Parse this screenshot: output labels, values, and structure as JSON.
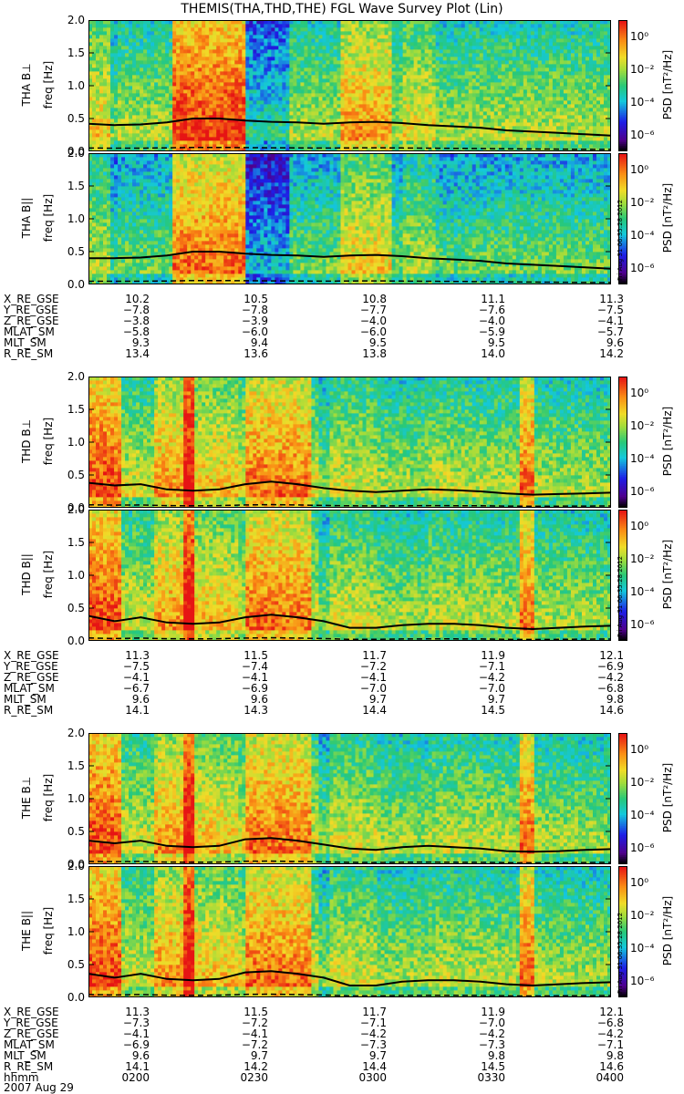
{
  "title": "THEMIS(THA,THD,THE) FGL Wave Survey Plot (Lin)",
  "colors": {
    "background": "#ffffff",
    "line": "#000000"
  },
  "chart_data": {
    "type": "heatmap",
    "yaxis": {
      "label": "freq [Hz]",
      "range": [
        0,
        2.0
      ],
      "ticks": [
        "0.0",
        "0.5",
        "1.0",
        "1.5",
        "2.0"
      ]
    },
    "colorbar": {
      "label": "PSD [nT²/Hz]",
      "ticks": [
        "10⁰",
        "10⁻²",
        "10⁻⁴",
        "10⁻⁶"
      ],
      "scale": "log",
      "range": [
        -7,
        1
      ]
    },
    "stamp": "Fri Aug 31 06:35:28 2012",
    "panels": [
      {
        "label": "THA B⊥",
        "probe": "a",
        "fc": [
          0.42,
          0.4,
          0.41,
          0.44,
          0.5,
          0.5,
          0.47,
          0.45,
          0.44,
          0.42,
          0.44,
          0.45,
          0.43,
          0.4,
          0.38,
          0.36,
          0.32,
          0.3,
          0.28,
          0.26,
          0.24
        ]
      },
      {
        "label": "THA B||",
        "probe": "a",
        "fc": [
          0.4,
          0.4,
          0.41,
          0.44,
          0.5,
          0.5,
          0.47,
          0.45,
          0.44,
          0.42,
          0.44,
          0.45,
          0.43,
          0.4,
          0.38,
          0.36,
          0.32,
          0.3,
          0.28,
          0.26,
          0.24
        ]
      },
      {
        "label": "THD B⊥",
        "probe": "d",
        "fc": [
          0.38,
          0.34,
          0.36,
          0.28,
          0.26,
          0.28,
          0.36,
          0.4,
          0.36,
          0.3,
          0.26,
          0.24,
          0.26,
          0.28,
          0.27,
          0.25,
          0.22,
          0.2,
          0.21,
          0.22,
          0.23
        ]
      },
      {
        "label": "THD B||",
        "probe": "d",
        "fc": [
          0.38,
          0.3,
          0.36,
          0.28,
          0.26,
          0.28,
          0.36,
          0.4,
          0.36,
          0.3,
          0.2,
          0.2,
          0.24,
          0.26,
          0.26,
          0.24,
          0.2,
          0.18,
          0.2,
          0.22,
          0.23
        ]
      },
      {
        "label": "THE B⊥",
        "probe": "e",
        "fc": [
          0.36,
          0.32,
          0.36,
          0.28,
          0.26,
          0.28,
          0.38,
          0.4,
          0.36,
          0.3,
          0.24,
          0.22,
          0.26,
          0.28,
          0.26,
          0.24,
          0.2,
          0.19,
          0.2,
          0.22,
          0.23
        ]
      },
      {
        "label": "THE B||",
        "probe": "e",
        "fc": [
          0.36,
          0.3,
          0.36,
          0.28,
          0.26,
          0.28,
          0.38,
          0.4,
          0.36,
          0.3,
          0.18,
          0.18,
          0.24,
          0.26,
          0.26,
          0.24,
          0.2,
          0.18,
          0.2,
          0.22,
          0.23
        ]
      }
    ],
    "ephemeris": [
      {
        "rows": [
          {
            "name": "X_RE_GSE",
            "values": [
              "10.2",
              "10.5",
              "10.8",
              "11.1",
              "11.3"
            ]
          },
          {
            "name": "Y_RE_GSE",
            "values": [
              "−7.8",
              "−7.8",
              "−7.7",
              "−7.6",
              "−7.5"
            ]
          },
          {
            "name": "Z_RE_GSE",
            "values": [
              "−3.8",
              "−3.9",
              "−4.0",
              "−4.0",
              "−4.1"
            ]
          },
          {
            "name": "MLAT_SM",
            "values": [
              "−5.8",
              "−6.0",
              "−6.0",
              "−5.9",
              "−5.7"
            ]
          },
          {
            "name": "MLT_SM",
            "values": [
              "9.3",
              "9.4",
              "9.5",
              "9.5",
              "9.6"
            ]
          },
          {
            "name": "R_RE_SM",
            "values": [
              "13.4",
              "13.6",
              "13.8",
              "14.0",
              "14.2"
            ]
          }
        ]
      },
      {
        "rows": [
          {
            "name": "X_RE_GSE",
            "values": [
              "11.3",
              "11.5",
              "11.7",
              "11.9",
              "12.1"
            ]
          },
          {
            "name": "Y_RE_GSE",
            "values": [
              "−7.5",
              "−7.4",
              "−7.2",
              "−7.1",
              "−6.9"
            ]
          },
          {
            "name": "Z_RE_GSE",
            "values": [
              "−4.1",
              "−4.1",
              "−4.1",
              "−4.2",
              "−4.2"
            ]
          },
          {
            "name": "MLAT_SM",
            "values": [
              "−6.7",
              "−6.9",
              "−7.0",
              "−7.0",
              "−6.8"
            ]
          },
          {
            "name": "MLT_SM",
            "values": [
              "9.6",
              "9.6",
              "9.7",
              "9.7",
              "9.8"
            ]
          },
          {
            "name": "R_RE_SM",
            "values": [
              "14.1",
              "14.3",
              "14.4",
              "14.5",
              "14.6"
            ]
          }
        ]
      },
      {
        "rows": [
          {
            "name": "X_RE_GSE",
            "values": [
              "11.3",
              "11.5",
              "11.7",
              "11.9",
              "12.1"
            ]
          },
          {
            "name": "Y_RE_GSE",
            "values": [
              "−7.3",
              "−7.2",
              "−7.1",
              "−7.0",
              "−6.8"
            ]
          },
          {
            "name": "Z_RE_GSE",
            "values": [
              "−4.1",
              "−4.1",
              "−4.2",
              "−4.2",
              "−4.2"
            ]
          },
          {
            "name": "MLAT_SM",
            "values": [
              "−6.9",
              "−7.2",
              "−7.3",
              "−7.3",
              "−7.1"
            ]
          },
          {
            "name": "MLT_SM",
            "values": [
              "9.6",
              "9.7",
              "9.7",
              "9.8",
              "9.8"
            ]
          },
          {
            "name": "R_RE_SM",
            "values": [
              "14.1",
              "14.2",
              "14.4",
              "14.5",
              "14.6"
            ]
          },
          {
            "name": "hhmm",
            "values": [
              "0200",
              "0230",
              "0300",
              "0330",
              "0400"
            ]
          }
        ]
      }
    ],
    "date": "2007 Aug 29"
  }
}
